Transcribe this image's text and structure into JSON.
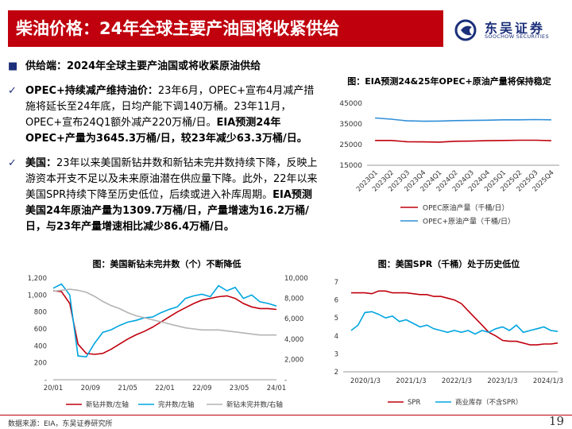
{
  "header": {
    "title": "柴油价格：24年全球主要产油国将收紧供给"
  },
  "logo": {
    "cn": "东吴证券",
    "en": "SOOCHOW SECURITIES"
  },
  "bullets": [
    {
      "marker": "■",
      "lead": "供给端：2024年全球主要产油国或将收紧原油供给",
      "body": ""
    },
    {
      "marker": "✓",
      "lead": "OPEC+持续减产维持油价：",
      "body": "23年6月，OPEC+宣布4月减产措施将延长至24年底，日均产能下调140万桶。23年11月，OPEC+宣布24Q1额外减产220万桶/日。",
      "tail": "EIA预测24年OPEC+产量为3645.3万桶/日，较23年减少63.3万桶/日。"
    },
    {
      "marker": "✓",
      "lead": "美国：",
      "body": "23年以来美国新钻井数和新钻未完井数持续下降，反映上游资本开支不足以及未来原油潜在供应量下降。此外，22年以来美国SPR持续下降至历史低位，后续或进入补库周期。",
      "tail": "EIA预测美国24年原油产量为1309.7万桶/日，产量增速为16.2万桶/日，与23年产量增速相比减少86.4万桶/日。"
    }
  ],
  "chart_data": [
    {
      "type": "line",
      "title": "图：EIA预测24&25年OPEC+原油产量将保持稳定",
      "categories": [
        "2023Q1",
        "2023Q2",
        "2023Q3",
        "2023Q4",
        "2024Q1",
        "2024Q2",
        "2024Q3",
        "2024Q4",
        "2025Q1",
        "2025Q2",
        "2025Q3",
        "2025Q4"
      ],
      "y_ticks": [
        "45000",
        "35000",
        "25000",
        "15000"
      ],
      "ylim": [
        15000,
        45000
      ],
      "series": [
        {
          "name": "OPEC原油产量（千桶/日）",
          "color": "#c0000d",
          "values": [
            27000,
            27000,
            26400,
            26300,
            26200,
            26600,
            26700,
            26900,
            27000,
            27100,
            27100,
            26900
          ]
        },
        {
          "name": "OPEC+原油产量（千桶/日）",
          "color": "#2f8fd8",
          "values": [
            37900,
            37300,
            36500,
            36300,
            36400,
            36600,
            36700,
            36800,
            37000,
            37000,
            37100,
            37000
          ]
        }
      ]
    },
    {
      "type": "line",
      "title": "图：美国新钻未完井数（个）不断降低",
      "x_ticks": [
        "20/01",
        "20/09",
        "21/05",
        "22/01",
        "22/09",
        "23/05",
        "24/01"
      ],
      "y_left_ticks": [
        "1,200",
        "1,000",
        "800",
        "600",
        "400",
        "200",
        "-"
      ],
      "y_right_ticks": [
        "10,000",
        "8,000",
        "6,000",
        "4,000",
        "2,000",
        "-"
      ],
      "ylim_left": [
        0,
        1200
      ],
      "ylim_right": [
        0,
        10000
      ],
      "series": [
        {
          "name": "新钻井数/左轴",
          "axis": "left",
          "color": "#c0000d",
          "values": [
            1050,
            1040,
            900,
            420,
            310,
            300,
            310,
            360,
            420,
            480,
            530,
            570,
            620,
            680,
            740,
            800,
            850,
            900,
            940,
            960,
            980,
            990,
            960,
            900,
            860,
            840,
            840,
            830
          ]
        },
        {
          "name": "完井数/左轴",
          "axis": "left",
          "color": "#00a5e0",
          "values": [
            1080,
            1130,
            1000,
            280,
            270,
            430,
            560,
            590,
            640,
            680,
            700,
            730,
            740,
            790,
            830,
            860,
            960,
            990,
            1010,
            980,
            1110,
            1050,
            1090,
            960,
            1000,
            920,
            900,
            870
          ]
        },
        {
          "name": "新钻未完井数/右轴",
          "axis": "right",
          "color": "#b4b4b4",
          "values": [
            8700,
            8800,
            8900,
            8800,
            8600,
            8200,
            7700,
            7300,
            7000,
            6600,
            6300,
            6100,
            5900,
            5700,
            5500,
            5300,
            5100,
            5000,
            4900,
            4900,
            4900,
            4800,
            4700,
            4600,
            4500,
            4400,
            4400,
            4400
          ]
        }
      ]
    },
    {
      "type": "line",
      "title": "图：美国SPR（千桶）处于历史低位",
      "x_ticks": [
        "2020/1/3",
        "2021/1/3",
        "2022/1/3",
        "2023/1/3",
        "2024/1/3"
      ],
      "y_ticks": [
        "7",
        "6",
        "5",
        "4",
        "3",
        "2"
      ],
      "ylim": [
        2,
        7
      ],
      "series": [
        {
          "name": "SPR",
          "color": "#c0000d",
          "values": [
            6.4,
            6.4,
            6.4,
            6.35,
            6.5,
            6.5,
            6.4,
            6.4,
            6.4,
            6.35,
            6.3,
            6.3,
            6.2,
            6.2,
            6.1,
            6.0,
            5.8,
            5.4,
            5.0,
            4.6,
            4.2,
            4.0,
            3.75,
            3.7,
            3.7,
            3.6,
            3.5,
            3.5,
            3.55,
            3.55,
            3.6
          ]
        },
        {
          "name": "商业库存（不含SPR）",
          "color": "#00a5e0",
          "values": [
            4.3,
            4.6,
            5.3,
            5.35,
            5.2,
            5.0,
            5.1,
            4.8,
            4.9,
            4.7,
            4.5,
            4.6,
            4.4,
            4.3,
            4.2,
            4.3,
            4.2,
            4.3,
            4.1,
            4.3,
            4.2,
            4.4,
            4.5,
            4.3,
            4.6,
            4.2,
            4.3,
            4.4,
            4.5,
            4.3,
            4.25
          ]
        }
      ]
    }
  ],
  "footer": {
    "source": "数据来源：EIA，东吴证券研究所",
    "page": "19"
  }
}
